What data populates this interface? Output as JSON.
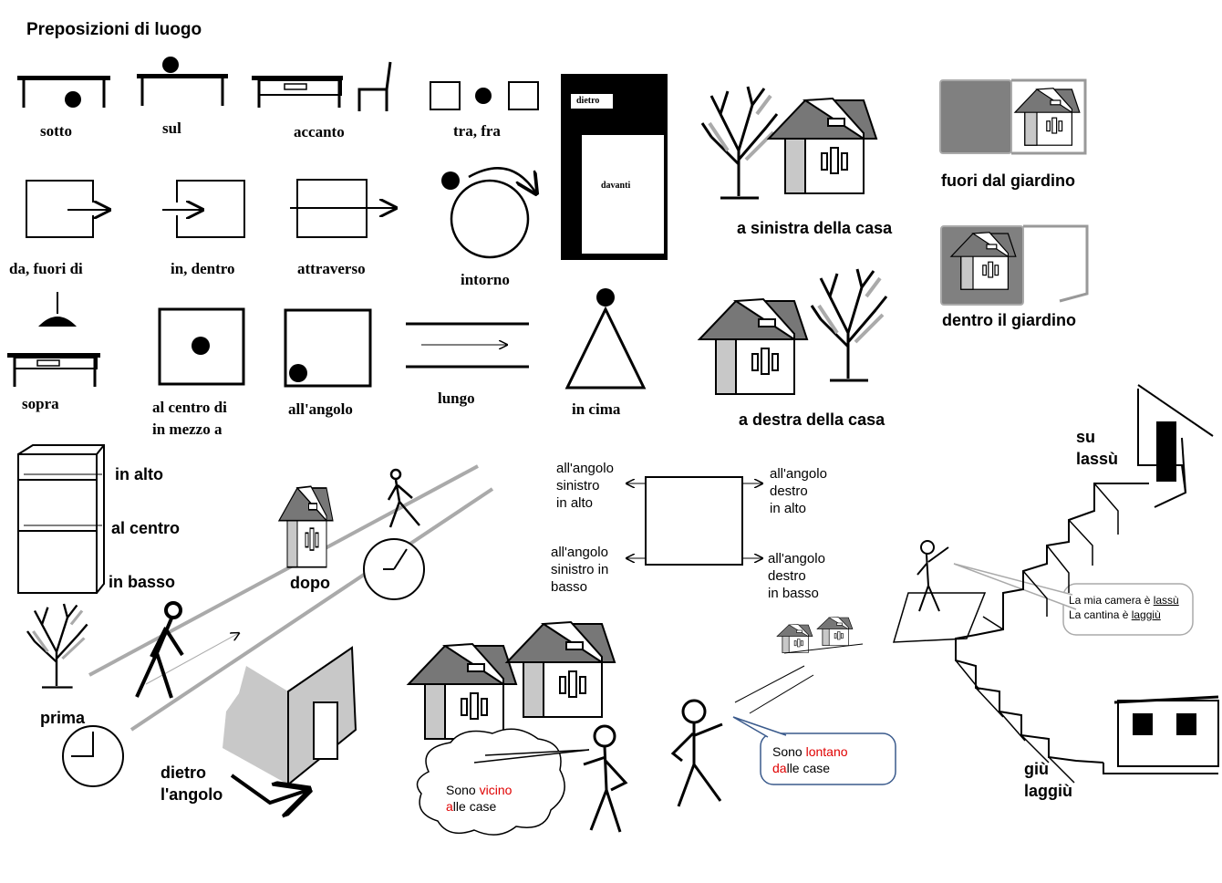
{
  "title": "Preposizioni di luogo",
  "row1": {
    "sotto": "sotto",
    "sul": "sul",
    "accanto": "accanto",
    "tra": "tra, fra"
  },
  "row2": {
    "da": "da, fuori di",
    "in": "in, dentro",
    "attraverso": "attraverso",
    "intorno": "intorno"
  },
  "row3": {
    "sopra": "sopra",
    "centro": "al centro di",
    "mezzo": "in mezzo a",
    "angolo": "all'angolo",
    "lungo": "lungo",
    "cima": "in cima"
  },
  "door": {
    "dietro": "dietro",
    "davanti": "davanti"
  },
  "house": {
    "sinistra": "a sinistra della casa",
    "destra": "a destra della casa"
  },
  "garden": {
    "fuori": "fuori dal giardino",
    "dentro": "dentro il giardino"
  },
  "shelf": {
    "alto": "in alto",
    "centro": "al centro",
    "basso": "in basso"
  },
  "street": {
    "dopo": "dopo",
    "prima": "prima",
    "dietro1": "dietro",
    "dietro2": "l'angolo"
  },
  "corners": {
    "tl": [
      "all'angolo",
      "sinistro",
      "in alto"
    ],
    "tr": [
      "all'angolo",
      "destro",
      "in alto"
    ],
    "bl": [
      "all'angolo",
      "sinistro in",
      "basso"
    ],
    "br": [
      "all'angolo",
      "destro",
      "in basso"
    ]
  },
  "stairs": {
    "su": "su",
    "lassu": "lassù",
    "giu": "giù",
    "laggiu": "laggiù"
  },
  "bubble_stairs": {
    "l1a": "La mia camera è ",
    "l1b": "lassù",
    "l2a": "La cantina è ",
    "l2b": "laggiù"
  },
  "bubble_vicino": {
    "a": "Sono ",
    "b": "vicino",
    "c": "a",
    "d": "lle case"
  },
  "bubble_lontano": {
    "a": "Sono ",
    "b": "lontano",
    "c": "da",
    "d": "lle case"
  },
  "colors": {
    "accent_red": "#e00000",
    "gray": "#c8c8c8",
    "dark_gray": "#808080",
    "bubble_blue": "#3a5a8c"
  }
}
